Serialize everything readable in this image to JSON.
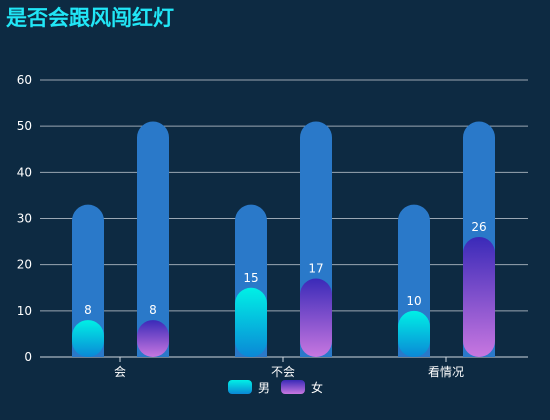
{
  "chart_data": {
    "type": "bar",
    "title": "是否会跟风闯红灯",
    "categories": [
      "会",
      "不会",
      "看情况"
    ],
    "ylim": [
      0,
      60
    ],
    "yticks": [
      0,
      10,
      20,
      30,
      40,
      50,
      60
    ],
    "grid": true,
    "legend_position": "bottom",
    "series": [
      {
        "name": "男",
        "values": [
          8,
          15,
          10
        ],
        "background_value": 33
      },
      {
        "name": "女",
        "values": [
          8,
          17,
          26
        ],
        "background_value": 51
      }
    ]
  },
  "colors": {
    "page_background": "#0d2a42",
    "title": "#21e6f6",
    "track": "#2a79c9",
    "male_gradient": [
      "#00f0e6",
      "#0a88d6"
    ],
    "female_gradient": [
      "#3a2ab8",
      "#c877e0"
    ],
    "text": "#ffffff",
    "grid": "#9aa7b3"
  }
}
